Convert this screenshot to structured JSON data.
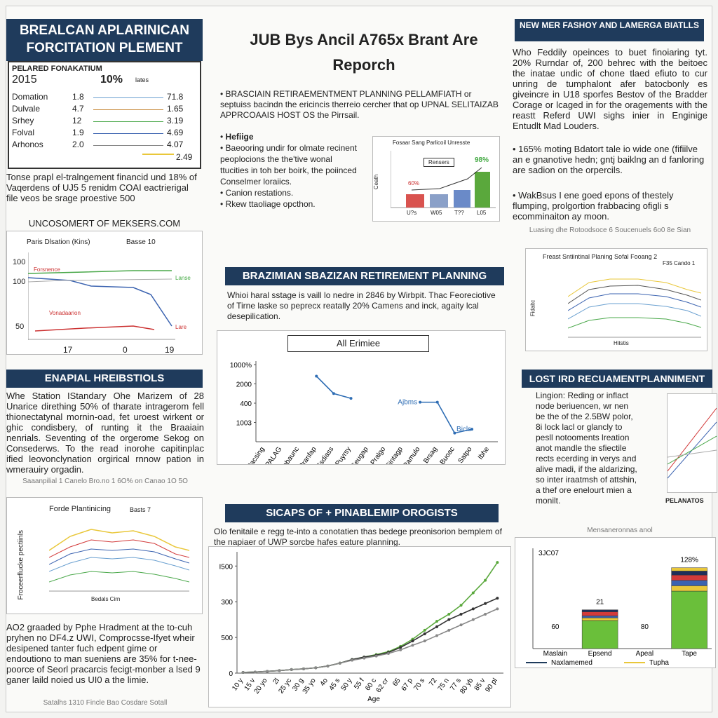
{
  "header": {
    "left_title": "BREALCAN APLARINICAN FORCITATION PLEMENT",
    "center_title": "JUB Bys Ancil A765x Brant Are Reporch",
    "right_title": "NEW MER FASHOY AND LAMERGA BIATLLS"
  },
  "stats_box": {
    "title": "PELARED FONAKATIUM",
    "year": "2015",
    "rate": "10%",
    "rate_note": "lates",
    "rows": [
      [
        "Domation",
        "1.8",
        "71.8"
      ],
      [
        "Dulvale",
        "4.7",
        "1.65"
      ],
      [
        "Srhey",
        "12",
        "3.19"
      ],
      [
        "Folval",
        "1.9",
        "4.69"
      ],
      [
        "Arhonos",
        "2.0",
        "4.07"
      ]
    ],
    "extra": "2.49"
  },
  "left_note": "Tonse prapl el-tralngement financid und 18% of Vaqerdens of UJ5 5 renidm COAI eactrierigal file veos be srage proestive 500",
  "left_chart": {
    "title": "UNCOSOMERT OF MEKSERS.COM",
    "subtitle": "Paris Dlsation (Kins)",
    "note": "Basse 10",
    "y_labels": [
      "100",
      "100",
      "50"
    ],
    "x_labels": [
      "17",
      "0",
      "19"
    ],
    "series_labels": [
      "Forsnence",
      "Vonadaarion",
      "Lanse",
      "Lare"
    ]
  },
  "left_section": {
    "title": "ENAPIAL HREIBSTIOLS",
    "text": "Whe Station IStandary Ohe Marizem of 28 Unarice dirething 50% of tharate intragerom fell thionectatynal mornin-oad, fet uroest wirkent or ghic condisbery, of runting it the Braaiain nenrials. Seventing of the orgerome Sekog on Consederws. To the read inorohe capitinplac ified leovonclynation orgirical rnnow pation in wmerauiry orgadin.",
    "caption": "Saaanpilial 1 Canelo Bro.no 1 6O% on Canao 1O 5O"
  },
  "left_chart2": {
    "title": "Forde Plantinicing",
    "note": "Basts 7",
    "y_label": "Froceerflucke pectiinls",
    "x_label": "Bedals Cirn"
  },
  "left_bottom_text": "AO2 graaded by Pphe Hradment at the to-cuh pryhen no DF4.z UWI, Comprocsse-Ifyet wheir desipened tanter fuch edpent gime or endoutiono to man sueniens are 35% for t-nee-poorce of Seorl pracarcis fecigt-monber a lsed 9 ganer laild noied us UI0 a the limie.",
  "left_bottom_caption": "Satalhs 1310 Fincle Bao Cosdare Sotall",
  "center_bullets": {
    "b1": "BRASCIAIN RETIRAEMENTMENT PLANNING PELLAMFIATH or septuiss bacindn the ericincis therreio cercher that op UPNAL SELITAIZAB APPRCOAAIS HOST OS the Pirrsail.",
    "b2": "Hefiige",
    "b3": "Baeooring undir for olmate recinent peoplocions the the'tive wonal ttucities in toh ber boirk, the poiinced Conselmer loraiics.",
    "b4": "Canion restations.",
    "b5": "Rkew ttaoliage opcthon."
  },
  "mini_bar": {
    "title": "Fosaar Sang Parlicoil Unresste",
    "label": "Rensers",
    "value_a": "60%",
    "value_b": "98%",
    "y_label": "Ceath",
    "x_labels": [
      "U?s",
      "W05",
      "T??",
      "L05"
    ]
  },
  "center_section": {
    "title": "BRAZIMIAN SBAZIZAN RETIREMENT PLANNING",
    "text": "Whioi haral sstage is vaill lo nedre in 2846 by Wirbpit. Thac Feoreciotive of Tirne laske so peprecx reatally 20% Camens and inck, agaity lcal desepilication."
  },
  "center_chart": {
    "title": "All Erimiee",
    "categories": [
      "Racsing",
      "SPALAG",
      "Pobaunc",
      "Pranfap",
      "Ssdiass",
      "Puyrsy",
      "Seugap",
      "Pralgo",
      "Sintagp",
      "Pamulo",
      "Brsag",
      "Buoac",
      "Satpo",
      "Ibhe"
    ],
    "series": [
      {
        "name": "All Erimiee",
        "color": "#2e6db4",
        "values": [
          null,
          null,
          null,
          3.4,
          2.5,
          2.25,
          null,
          null,
          null,
          2.05,
          2.05,
          0.45,
          0.65,
          null
        ]
      }
    ],
    "annotations": [
      "Ajbms",
      "Bicls"
    ],
    "ylim": [
      0,
      4
    ],
    "yticks": [
      {
        "value": 4,
        "label": "1000%"
      },
      {
        "value": 3,
        "label": "2000"
      },
      {
        "value": 2,
        "label": "400"
      },
      {
        "value": 1,
        "label": "1003"
      }
    ]
  },
  "bottom_section": {
    "title": "SICAPS OF + PINABLEMIP OROGISTS",
    "text": "Olo fenitaile e regg te-into a conotatien thas bedege preonisorion bemplem of the napiaer of UWP sorcbe hafes eature planning."
  },
  "bottom_chart": {
    "x_label": "Age",
    "categories": [
      "10 y",
      "15 v",
      "20 yo",
      "2l",
      "25 yc",
      "30 g",
      "35 yo",
      "4o",
      "45 s",
      "50 y",
      "55 f",
      "60 c",
      "62 cr",
      "65",
      "67 p",
      "70 s",
      "72",
      "75 n",
      "77 s",
      "80 yb",
      "85 v",
      "90 pl"
    ],
    "series": [
      {
        "color": "#5aa83c",
        "values": [
          0.02,
          0.03,
          0.05,
          0.07,
          0.1,
          0.12,
          0.15,
          0.2,
          0.28,
          0.38,
          0.45,
          0.52,
          0.6,
          0.75,
          0.95,
          1.2,
          1.45,
          1.65,
          1.9,
          2.25,
          2.6,
          3.1
        ]
      },
      {
        "color": "#333333",
        "values": [
          0.02,
          0.03,
          0.05,
          0.07,
          0.1,
          0.12,
          0.15,
          0.2,
          0.28,
          0.38,
          0.45,
          0.5,
          0.58,
          0.72,
          0.9,
          1.1,
          1.3,
          1.5,
          1.65,
          1.8,
          1.95,
          2.1
        ]
      },
      {
        "color": "#888888",
        "values": [
          0.02,
          0.03,
          0.05,
          0.07,
          0.1,
          0.12,
          0.15,
          0.2,
          0.28,
          0.36,
          0.42,
          0.48,
          0.55,
          0.65,
          0.78,
          0.9,
          1.05,
          1.2,
          1.35,
          1.5,
          1.65,
          1.8
        ]
      }
    ],
    "ylim": [
      0,
      3.3
    ],
    "yticks": [
      {
        "value": 3,
        "label": "I500"
      },
      {
        "value": 2,
        "label": "300"
      },
      {
        "value": 1,
        "label": "500"
      },
      0
    ]
  },
  "right_text": {
    "p1": "Who Feddily opeinces to buet finoiaring tyt. 20% Rurndar of, 200 behrec with the beitoec the inatae undic of chone tlaed efiuto to cur unring de tumphalont afer batocbonly es giveincre in U18 sporfes Bestov of the Bradder Corage or lcaged in for the oragements with the reastt Referd UWI sighs inier in Enginige Entudlt Mad Louders.",
    "p2": "165% moting Bdatort tale io wide one (fifiilve an e gnanotive hedn; gntj baiklng an d fanloring are sadion on the orpercils.",
    "p3": "WakBsus I ene goed epons of thestely flumping, prolgortion frabbacing ofigli s ecomminaiton ay moon.",
    "caption": "Luasing dhe Rotoodsoce 6 Soucenuels 6o0 8e Sian"
  },
  "right_chart": {
    "title": "Freast Sntiintinal Planing Sofal Fooang 2",
    "note": "F35 Cando 1",
    "y_label": "Fidaltc",
    "x_label": "Hitstis"
  },
  "right_section": {
    "title": "LOST IRD RECUAMENTPLANNIMENT",
    "text": "Lingion: Reding or inflact node beriuencen, wr nen be the of the 2.5BW polor, 8i lock lacl or glancly to pesll notooments lreation anot mandle the sfiectile rects ecerding in verys and alive madi, if the aldarizing, so inter iraatmsh of attshin, a thef ore enelourt mien a monilt.",
    "chart_label": "PELANATOS"
  },
  "bar_chart": {
    "title": "Mensaneronnas anol",
    "y_label": "3JC07",
    "categories": [
      "Maslain",
      "Epsend",
      "Apeal",
      "Tape"
    ],
    "annotations": [
      "60",
      "21",
      "80",
      "128%"
    ],
    "ylim": [
      0,
      150
    ],
    "segments": [
      {
        "color": "#6abf3a",
        "values": [
          0,
          42,
          0,
          86
        ]
      },
      {
        "color": "#e9c73a",
        "values": [
          0,
          4,
          0,
          8
        ]
      },
      {
        "color": "#3b63b0",
        "values": [
          0,
          3,
          0,
          8
        ]
      },
      {
        "color": "#d23a3a",
        "values": [
          0,
          6,
          0,
          8
        ]
      },
      {
        "color": "#1f2f5a",
        "values": [
          0,
          3,
          0,
          6
        ]
      },
      {
        "color": "#e9c73a",
        "values": [
          0,
          0,
          0,
          5
        ]
      }
    ],
    "legend": [
      {
        "name": "Naxlamemed",
        "color": "#1f3b5c"
      },
      {
        "name": "Tupha",
        "color": "#e9c73a"
      }
    ]
  }
}
